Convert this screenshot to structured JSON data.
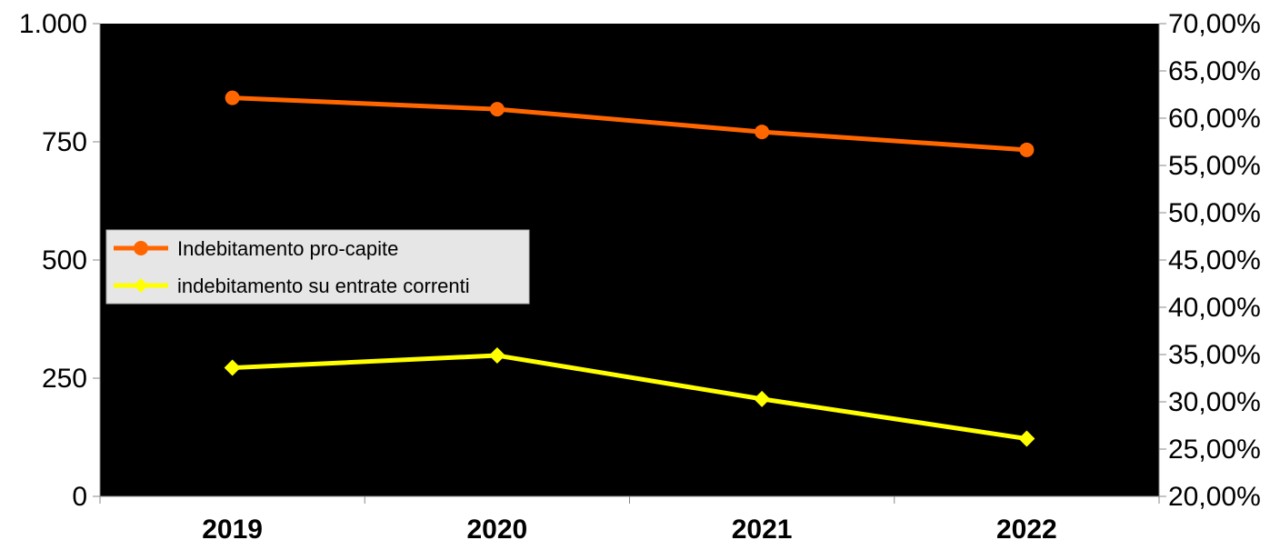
{
  "chart_data": {
    "type": "line",
    "title": "",
    "categories": [
      "2019",
      "2020",
      "2021",
      "2022"
    ],
    "y_left": {
      "ylim": [
        0,
        1000
      ],
      "ticks": [
        0,
        250,
        500,
        750,
        1000
      ],
      "tick_labels": [
        "0",
        "250",
        "500",
        "750",
        "1.000"
      ]
    },
    "y_right": {
      "ylim": [
        0.2,
        0.7
      ],
      "ticks": [
        0.2,
        0.25,
        0.3,
        0.35,
        0.4,
        0.45,
        0.5,
        0.55,
        0.6,
        0.65,
        0.7
      ],
      "tick_labels": [
        "20,00%",
        "25,00%",
        "30,00%",
        "35,00%",
        "40,00%",
        "45,00%",
        "50,00%",
        "55,00%",
        "60,00%",
        "65,00%",
        "70,00%"
      ]
    },
    "series": [
      {
        "name": "Indebitamento pro-capite",
        "axis": "left",
        "values": [
          843,
          819,
          771,
          733
        ],
        "color": "#ff6600",
        "marker": "circle"
      },
      {
        "name": "indebitamento su entrate correnti",
        "axis": "right",
        "values": [
          0.336,
          0.349,
          0.303,
          0.261
        ],
        "color": "#ffff00",
        "marker": "diamond"
      }
    ],
    "plot_background": "#000000",
    "legend_position": "left",
    "grid": false
  }
}
